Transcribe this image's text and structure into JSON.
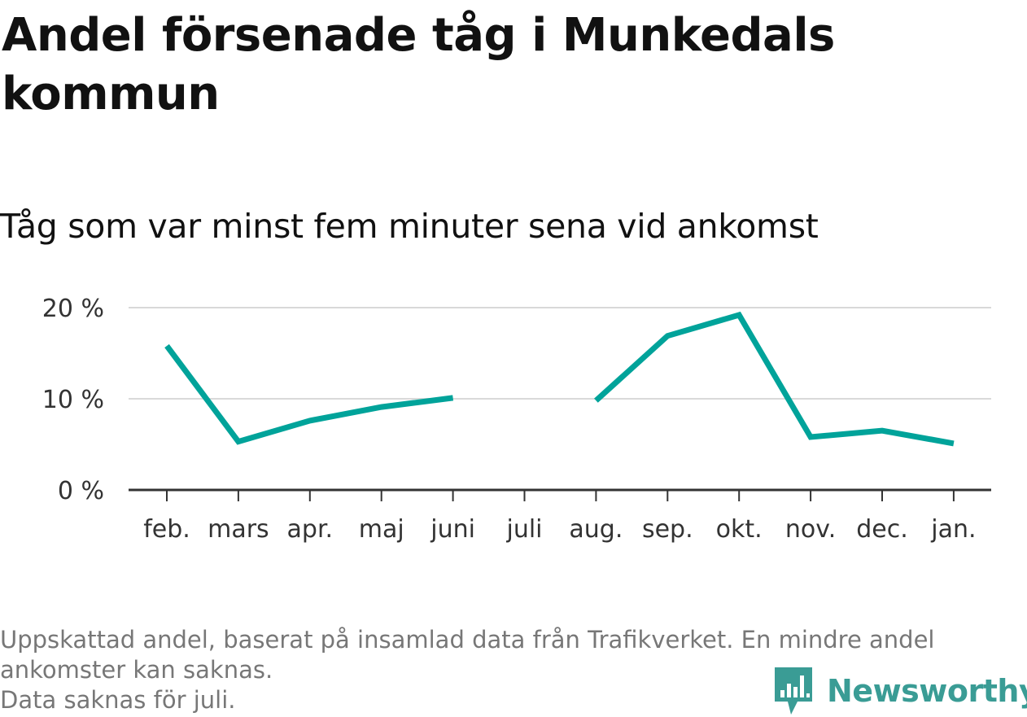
{
  "header": {
    "title": "Andel försenade tåg i Munkedals kommun",
    "subtitle": "Tåg som var minst fem minuter sena vid ankomst"
  },
  "chart_data": {
    "type": "line",
    "categories": [
      "feb.",
      "mars",
      "apr.",
      "maj",
      "juni",
      "juli",
      "aug.",
      "sep.",
      "okt.",
      "nov.",
      "dec.",
      "jan."
    ],
    "series": [
      {
        "values": [
          15.8,
          5.3,
          7.6,
          9.1,
          10.1,
          null,
          9.8,
          16.9,
          19.2,
          5.8,
          6.5,
          5.1
        ],
        "color": "#00a39a"
      }
    ],
    "y_ticks": [
      {
        "value": 0,
        "label": "0 %"
      },
      {
        "value": 10,
        "label": "10 %"
      },
      {
        "value": 20,
        "label": "20 %"
      }
    ],
    "ylim": [
      0,
      20
    ],
    "grid": true,
    "legend": "none"
  },
  "footer": {
    "notes": [
      "Uppskattad andel, baserat på insamlad data från Trafikverket. En mindre andel",
      "ankomster kan saknas.",
      "Data saknas för juli."
    ],
    "brand": "Newsworthy",
    "brand_icon": "newsworthy-logo-icon",
    "brand_color": "#3a9c95"
  }
}
